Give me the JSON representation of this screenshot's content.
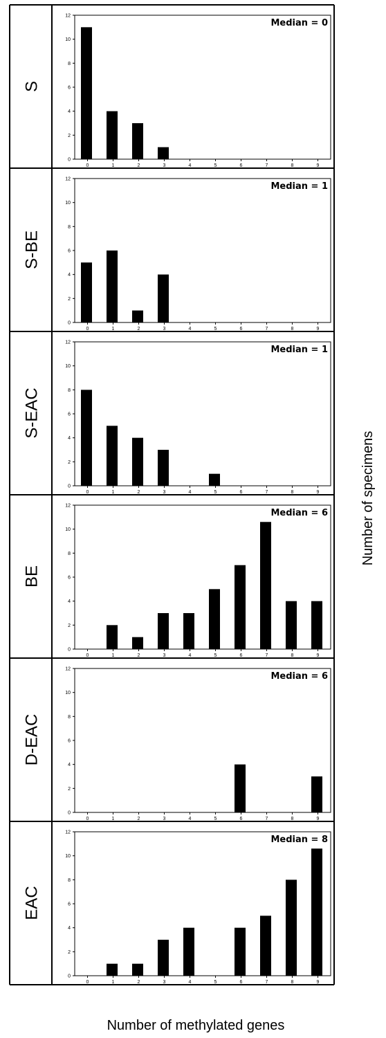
{
  "chart_data": {
    "type": "bar",
    "xlabel": "Number of methylated genes",
    "ylabel": "Number of specimens",
    "ylim": [
      0,
      12
    ],
    "yticks": [
      "0",
      "2",
      "4",
      "6",
      "8",
      "10",
      "12"
    ],
    "categories": [
      "0",
      "1",
      "2",
      "3",
      "4",
      "5",
      "6",
      "7",
      "8",
      "9"
    ],
    "panels": [
      {
        "group": "S",
        "median": "Median = 0",
        "values": [
          11,
          4,
          3,
          1,
          0,
          0,
          0,
          0,
          0,
          0
        ]
      },
      {
        "group": "S-BE",
        "median": "Median = 1",
        "values": [
          5,
          6,
          1,
          4,
          0,
          0,
          0,
          0,
          0,
          0
        ]
      },
      {
        "group": "S-EAC",
        "median": "Median = 1",
        "values": [
          8,
          5,
          4,
          3,
          0,
          1,
          0,
          0,
          0,
          0
        ]
      },
      {
        "group": "BE",
        "median": "Median = 6",
        "values": [
          0,
          2,
          1,
          3,
          3,
          5,
          7,
          10.6,
          4,
          4
        ]
      },
      {
        "group": "D-EAC",
        "median": "Median = 6",
        "values": [
          0,
          0,
          0,
          0,
          0,
          0,
          4,
          0,
          0,
          3
        ]
      },
      {
        "group": "EAC",
        "median": "Median = 8",
        "values": [
          0,
          1,
          1,
          3,
          4,
          0,
          4,
          5,
          8,
          10.6
        ]
      }
    ]
  }
}
